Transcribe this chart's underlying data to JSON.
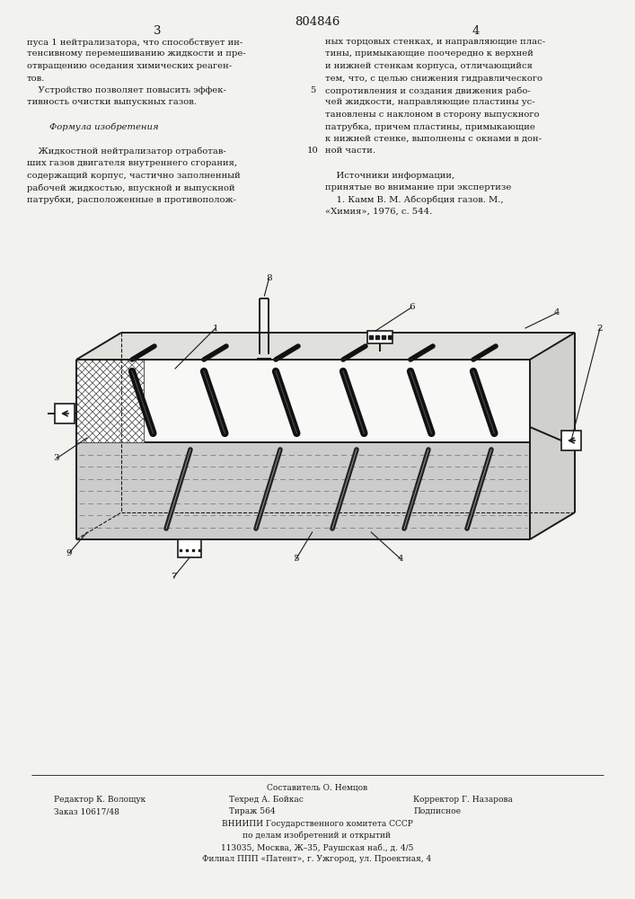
{
  "patent_number": "804846",
  "page_left": "3",
  "page_right": "4",
  "bg_color": "#f2f2ee",
  "text_color": "#1a1a1a",
  "left_column_text": [
    "пуса 1 нейтрализатора, что способствует ин-",
    "тенсивному перемешиванию жидкости и пре-",
    "отвращению оседания химических реаген-",
    "тов.",
    "    Устройство позволяет повысить эффек-",
    "тивность очистки выпускных газов.",
    "",
    "        Формула изобретения",
    "",
    "    Жидкостной нейтрализатор отработав-",
    "ших газов двигателя внутреннего сгорания,",
    "содержащий корпус, частично заполненный",
    "рабочей жидкостью, впускной и выпускной",
    "патрубки, расположенные в противополож-"
  ],
  "right_column_text": [
    "ных торцовых стенках, и направляющие плас-",
    "тины, примыкающие поочередно к верхней",
    "и нижней стенкам корпуса, отличающийся",
    "тем, что, с целью снижения гидравлического",
    "сопротивления и создания движения рабо-",
    "чей жидкости, направляющие пластины ус-",
    "тановлены с наклоном в сторону выпускного",
    "патрубка, причем пластины, примыкающие",
    "к нижней стенке, выполнены с окнами в дон-",
    "ной части.",
    "",
    "    Источники информации,",
    "принятые во внимание при экспертизе",
    "    1. Камм В. М. Абсорбция газов. М.,",
    "«Химия», 1976, с. 544."
  ],
  "line_number_5": "5",
  "line_number_10": "10",
  "footer_compositor": "Составитель О. Немцов",
  "footer_editor": "Редактор К. Волощук",
  "footer_tech": "Техред А. Бойкас",
  "footer_corrector": "Корректор Г. Назарова",
  "footer_order": "Заказ 10617/48",
  "footer_edition": "Тираж 564",
  "footer_subscription": "Подписное",
  "footer_org1": "ВНИИПИ Государственного комитета СССР",
  "footer_org2": "по делам изобретений и открытий",
  "footer_address1": "113035, Москва, Ж–35, Раушская наб., д. 4/5",
  "footer_address2": "Филиал ППП «Патент», г. Ужгород, ул. Проектная, 4"
}
